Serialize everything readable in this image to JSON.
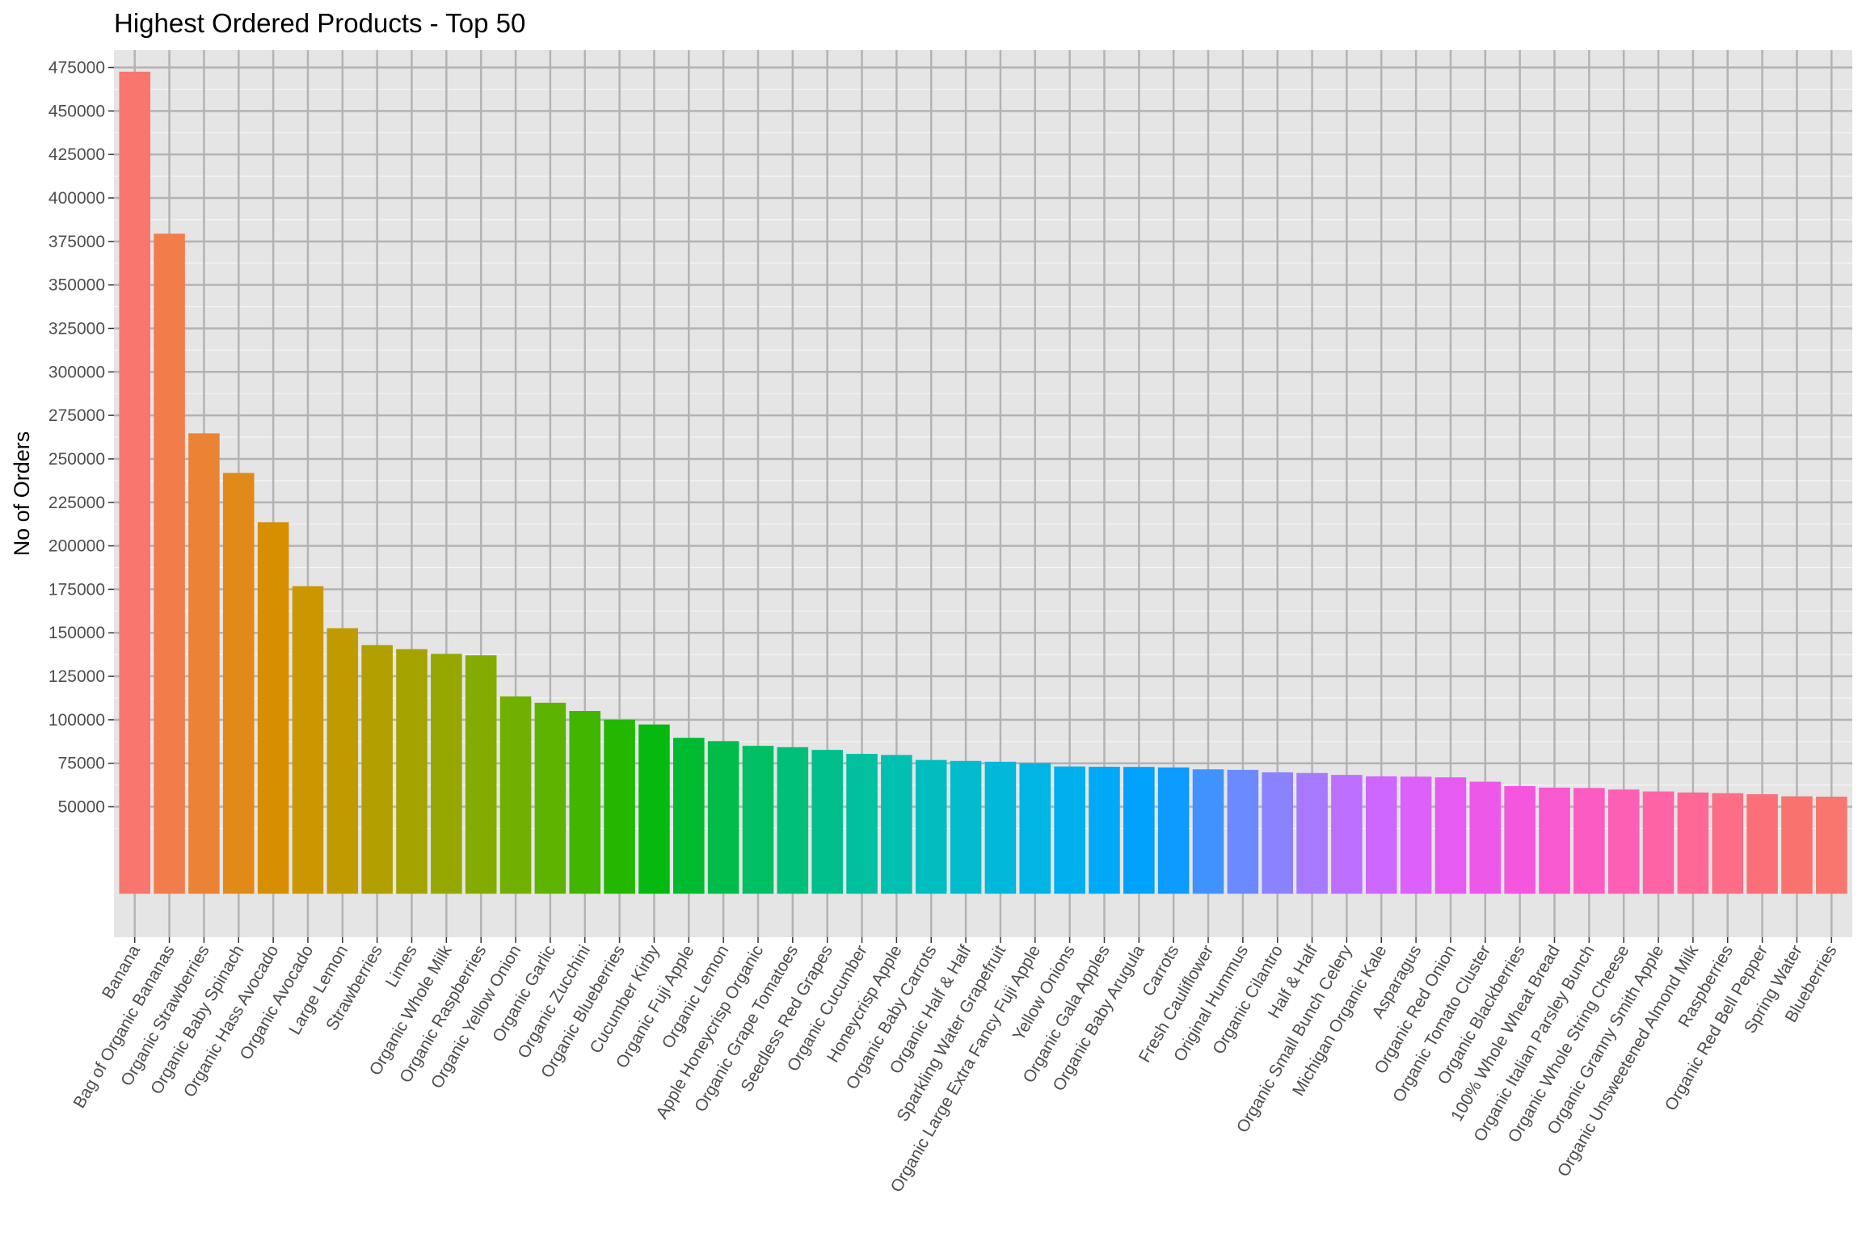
{
  "chart_data": {
    "type": "bar",
    "title": "Highest Ordered Products - Top 50",
    "xlabel": "",
    "ylabel": "No of Orders",
    "ylim": [
      -25000,
      485000
    ],
    "yticks": [
      50000,
      75000,
      100000,
      125000,
      150000,
      175000,
      200000,
      225000,
      250000,
      275000,
      300000,
      325000,
      350000,
      375000,
      400000,
      425000,
      450000,
      475000
    ],
    "grid": true,
    "legend": "none",
    "categories": [
      "Banana",
      "Bag of Organic Bananas",
      "Organic Strawberries",
      "Organic Baby Spinach",
      "Organic Hass Avocado",
      "Organic Avocado",
      "Large Lemon",
      "Strawberries",
      "Limes",
      "Organic Whole Milk",
      "Organic Raspberries",
      "Organic Yellow Onion",
      "Organic Garlic",
      "Organic Zucchini",
      "Organic Blueberries",
      "Cucumber Kirby",
      "Organic Fuji Apple",
      "Organic Lemon",
      "Apple Honeycrisp Organic",
      "Organic Grape Tomatoes",
      "Seedless Red Grapes",
      "Organic Cucumber",
      "Honeycrisp Apple",
      "Organic Baby Carrots",
      "Organic Half & Half",
      "Sparkling Water Grapefruit",
      "Organic Large Extra Fancy Fuji Apple",
      "Yellow Onions",
      "Organic Gala Apples",
      "Organic Baby Arugula",
      "Carrots",
      "Fresh Cauliflower",
      "Original Hummus",
      "Organic Cilantro",
      "Half & Half",
      "Organic Small Bunch Celery",
      "Michigan Organic Kale",
      "Asparagus",
      "Organic Red Onion",
      "Organic Tomato Cluster",
      "Organic Blackberries",
      "100% Whole Wheat Bread",
      "Organic Italian Parsley Bunch",
      "Organic Whole String Cheese",
      "Organic Granny Smith Apple",
      "Organic Unsweetened Almond Milk",
      "Raspberries",
      "Organic Red Bell Pepper",
      "Spring Water",
      "Blueberries"
    ],
    "values": [
      472565,
      379450,
      264683,
      241921,
      213584,
      176815,
      152657,
      142951,
      140627,
      137905,
      137057,
      113426,
      109778,
      105054,
      100060,
      97315,
      89632,
      87746,
      85020,
      84255,
      82689,
      80392,
      79769,
      76896,
      76360,
      75886,
      75162,
      73167,
      73000,
      72900,
      72600,
      71500,
      71200,
      69800,
      69400,
      68300,
      67500,
      67300,
      66900,
      64400,
      61900,
      61000,
      60800,
      59900,
      58800,
      58200,
      57800,
      57200,
      56000,
      55800
    ],
    "colors": [
      "#F8766D",
      "#F37C4B",
      "#EB8335",
      "#E18A18",
      "#D78F00",
      "#CC9600",
      "#C09B00",
      "#B29F00",
      "#A5A300",
      "#96A800",
      "#84AC00",
      "#72B000",
      "#5EB300",
      "#42B500",
      "#23B700",
      "#05B910",
      "#00BB30",
      "#00BD4B",
      "#00BE62",
      "#00BF78",
      "#00BF8C",
      "#00C09F",
      "#00C0B1",
      "#00BEC0",
      "#00BCCD",
      "#00B8D9",
      "#00B4E4",
      "#00AFEE",
      "#00A9F6",
      "#00A2FC",
      "#0D9BFF",
      "#4093FF",
      "#6C8AFF",
      "#8B82FF",
      "#A679FF",
      "#BC6FFF",
      "#CD67FF",
      "#DB61FA",
      "#E65CF2",
      "#EE58E8",
      "#F457DD",
      "#F858D0",
      "#FB5BC2",
      "#FD5FB4",
      "#FE63A5",
      "#FE6896",
      "#FD6D86",
      "#FB7078",
      "#F9736E",
      "#F8766D"
    ]
  }
}
